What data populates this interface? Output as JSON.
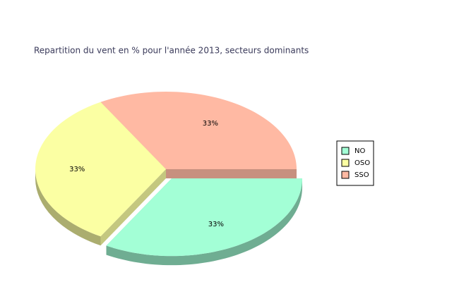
{
  "chart_data": {
    "type": "pie",
    "title": "Repartition du vent en % pour l'année 2013, secteurs dominants",
    "categories": [
      "SSO",
      "OSO",
      "NO"
    ],
    "values": [
      33,
      33,
      33
    ],
    "value_labels": [
      "33%",
      "33%",
      "33%"
    ],
    "colors": [
      "#ffb9a3",
      "#fbffa3",
      "#a3ffd6"
    ],
    "exploded": [
      false,
      false,
      true
    ],
    "legend": "right",
    "legend_order": [
      2,
      1,
      0
    ]
  }
}
